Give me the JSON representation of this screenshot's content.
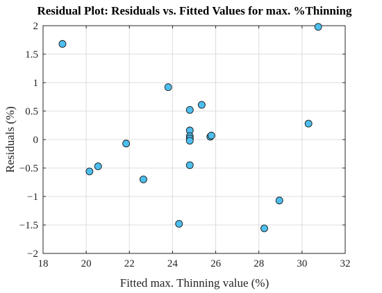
{
  "chart_data": {
    "type": "scatter",
    "title": "Residual Plot: Residuals vs. Fitted Values for max. %Thinning",
    "xlabel": "Fitted max. Thinning value (%)",
    "ylabel": "Residuals (%)",
    "xlim": [
      18,
      32
    ],
    "ylim": [
      -2,
      2
    ],
    "xticks": [
      18,
      20,
      22,
      24,
      26,
      28,
      30,
      32
    ],
    "xtick_labels": [
      "18",
      "20",
      "22",
      "24",
      "26",
      "28",
      "30",
      "32"
    ],
    "yticks": [
      -2,
      -1.5,
      -1,
      -0.5,
      0,
      0.5,
      1,
      1.5,
      2
    ],
    "ytick_labels": [
      "−2",
      "−1.5",
      "−1",
      "−0.5",
      "0",
      "0.5",
      "1",
      "1.5",
      "2"
    ],
    "grid": true,
    "marker_color": "#4DBEEE",
    "marker_edge_color": "#1a1a1a",
    "series": [
      {
        "x": [
          18.9,
          20.15,
          20.55,
          21.85,
          22.65,
          23.8,
          24.3,
          24.8,
          24.8,
          24.8,
          24.8,
          24.8,
          24.8,
          25.35,
          25.75,
          25.8,
          28.25,
          28.95,
          30.3,
          30.75
        ],
        "y": [
          1.68,
          -0.56,
          -0.47,
          -0.07,
          -0.7,
          0.92,
          -1.48,
          0.52,
          0.16,
          0.06,
          0.02,
          -0.02,
          -0.45,
          0.61,
          0.05,
          0.07,
          -1.56,
          -1.07,
          0.28,
          1.98
        ]
      }
    ]
  }
}
